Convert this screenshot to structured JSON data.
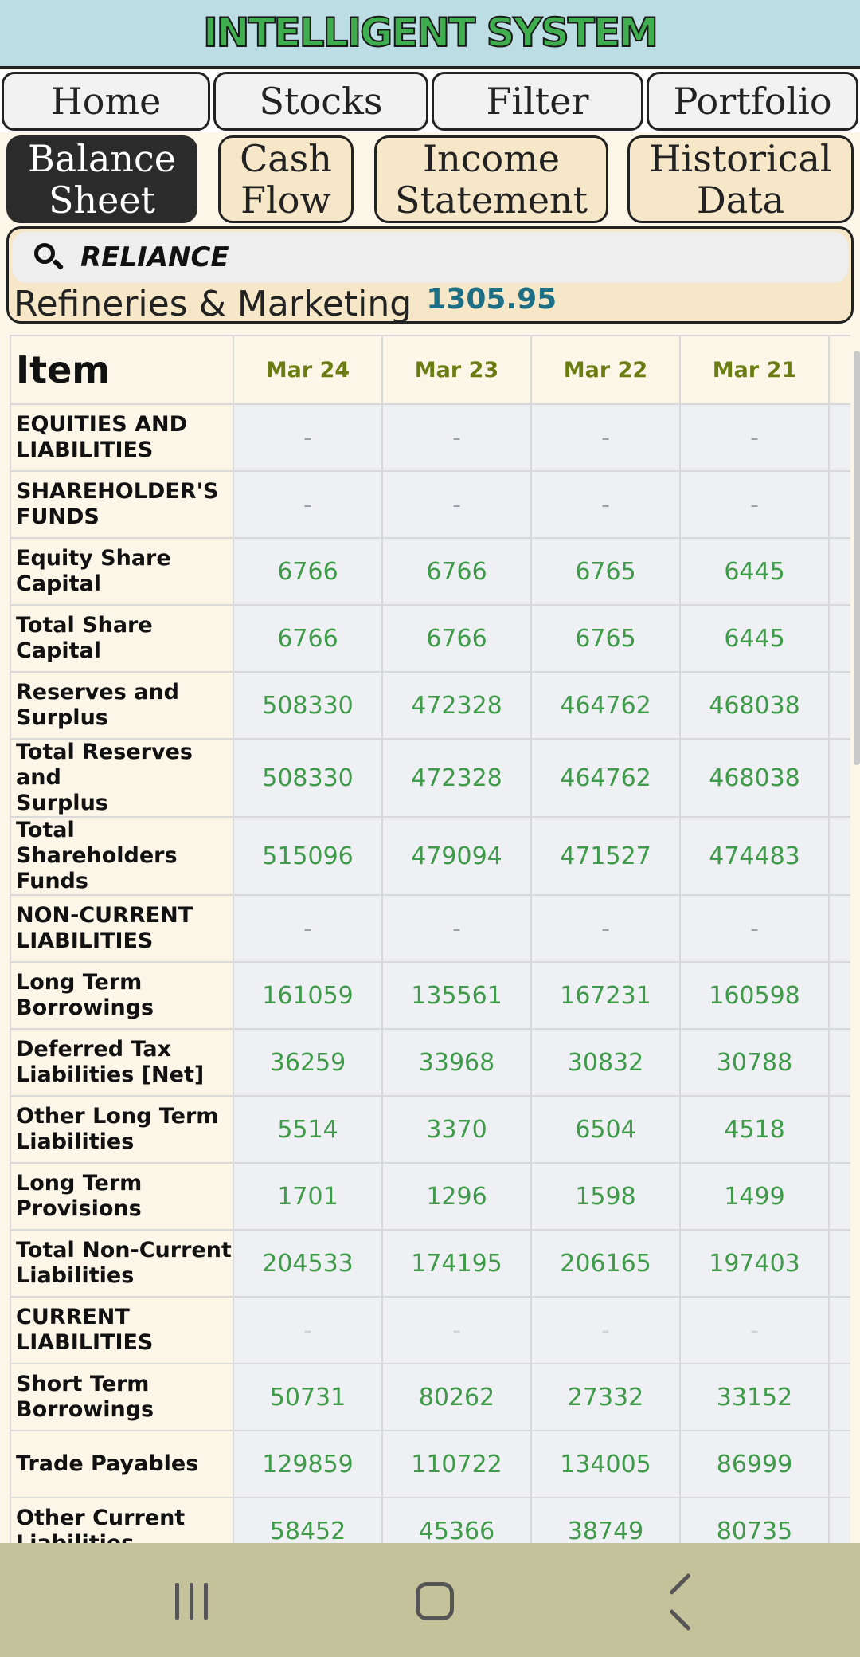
{
  "app": {
    "title": "INTELLIGENT SYSTEM"
  },
  "main_tabs": [
    {
      "label": "Home"
    },
    {
      "label": "Stocks"
    },
    {
      "label": "Filter"
    },
    {
      "label": "Portfolio"
    }
  ],
  "sub_tabs": [
    {
      "line1": "Balance",
      "line2": "Sheet",
      "active": true
    },
    {
      "line1": "Cash",
      "line2": "Flow",
      "active": false
    },
    {
      "line1": "Income",
      "line2": "Statement",
      "active": false
    },
    {
      "line1": "Historical",
      "line2": "Data",
      "active": false
    }
  ],
  "search": {
    "value": "RELIANCE",
    "icon": "search-icon"
  },
  "stock": {
    "sector": "Refineries & Marketing",
    "price": "1305.95"
  },
  "table": {
    "item_header": "Item",
    "years": [
      "Mar 24",
      "Mar 23",
      "Mar 22",
      "Mar 21"
    ],
    "rows": [
      {
        "line1": "EQUITIES AND",
        "line2": "LIABILITIES",
        "values": [
          "-",
          "-",
          "-",
          "-"
        ]
      },
      {
        "line1": "SHAREHOLDER'S",
        "line2": "FUNDS",
        "values": [
          "-",
          "-",
          "-",
          "-"
        ]
      },
      {
        "line1": "Equity Share",
        "line2": "Capital",
        "values": [
          "6766",
          "6766",
          "6765",
          "6445"
        ]
      },
      {
        "line1": "Total Share Capital",
        "line2": "",
        "values": [
          "6766",
          "6766",
          "6765",
          "6445"
        ]
      },
      {
        "line1": "Reserves and",
        "line2": "Surplus",
        "values": [
          "508330",
          "472328",
          "464762",
          "468038"
        ]
      },
      {
        "line1": "Total Reserves and",
        "line2": "Surplus",
        "values": [
          "508330",
          "472328",
          "464762",
          "468038"
        ]
      },
      {
        "line1": "Total Shareholders",
        "line2": "Funds",
        "values": [
          "515096",
          "479094",
          "471527",
          "474483"
        ]
      },
      {
        "line1": "NON-CURRENT",
        "line2": "LIABILITIES",
        "values": [
          "-",
          "-",
          "-",
          "-"
        ]
      },
      {
        "line1": "Long Term",
        "line2": "Borrowings",
        "values": [
          "161059",
          "135561",
          "167231",
          "160598"
        ]
      },
      {
        "line1": "Deferred Tax",
        "line2": "Liabilities [Net]",
        "values": [
          "36259",
          "33968",
          "30832",
          "30788"
        ]
      },
      {
        "line1": "Other Long Term",
        "line2": "Liabilities",
        "values": [
          "5514",
          "3370",
          "6504",
          "4518"
        ]
      },
      {
        "line1": "Long Term",
        "line2": "Provisions",
        "values": [
          "1701",
          "1296",
          "1598",
          "1499"
        ]
      },
      {
        "line1": "Total Non-Current",
        "line2": "Liabilities",
        "values": [
          "204533",
          "174195",
          "206165",
          "197403"
        ]
      },
      {
        "line1": "CURRENT",
        "line2": "LIABILITIES",
        "values": [
          "-",
          "-",
          "-",
          "-"
        ],
        "faint": true
      },
      {
        "line1": "Short Term",
        "line2": "Borrowings",
        "values": [
          "50731",
          "80262",
          "27332",
          "33152"
        ]
      },
      {
        "line1": "Trade Payables",
        "line2": "",
        "values": [
          "129859",
          "110722",
          "134005",
          "86999"
        ]
      },
      {
        "line1": "Other Current",
        "line2": "Liabilities",
        "values": [
          "58452",
          "45366",
          "38749",
          "80735"
        ]
      }
    ]
  },
  "colors": {
    "accent_green": "#3f9a4a",
    "year_header": "#6b7d12",
    "price_blue": "#1d6f86",
    "panel_beige": "#f5e7c7"
  },
  "system_nav": {
    "recent_icon": "recent-apps-icon",
    "home_icon": "home-icon",
    "back_icon": "back-icon"
  }
}
